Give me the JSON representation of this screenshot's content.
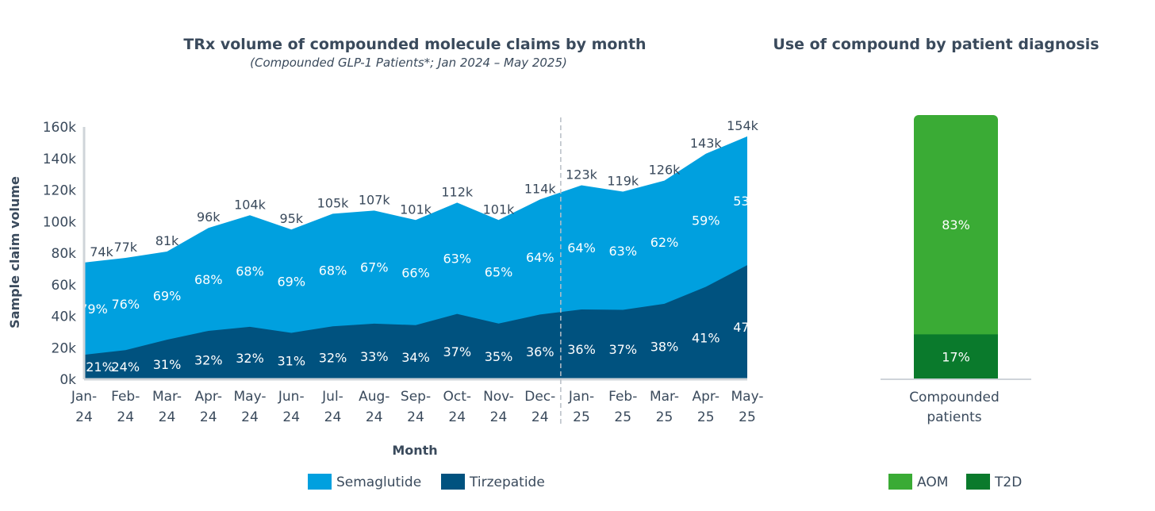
{
  "chart_data": [
    {
      "type": "area",
      "stacked": true,
      "title": "TRx volume of compounded molecule claims by month",
      "subtitle": "(Compounded GLP-1 Patients*; Jan 2024 – May 2025)",
      "xlabel": "Month",
      "ylabel": "Sample claim volume",
      "ylim": [
        0,
        160
      ],
      "yticks": [
        "0k",
        "20k",
        "40k",
        "60k",
        "80k",
        "100k",
        "120k",
        "140k",
        "160k"
      ],
      "categories": [
        [
          "Jan-",
          "24"
        ],
        [
          "Feb-",
          "24"
        ],
        [
          "Mar-",
          "24"
        ],
        [
          "Apr-",
          "24"
        ],
        [
          "May-",
          "24"
        ],
        [
          "Jun-",
          "24"
        ],
        [
          "Jul-",
          "24"
        ],
        [
          "Aug-",
          "24"
        ],
        [
          "Sep-",
          "24"
        ],
        [
          "Oct-",
          "24"
        ],
        [
          "Nov-",
          "24"
        ],
        [
          "Dec-",
          "24"
        ],
        [
          "Jan-",
          "25"
        ],
        [
          "Feb-",
          "25"
        ],
        [
          "Mar-",
          "25"
        ],
        [
          "Apr-",
          "25"
        ],
        [
          "May-",
          "25"
        ]
      ],
      "totals_k": [
        74,
        77,
        81,
        96,
        104,
        95,
        105,
        107,
        101,
        112,
        101,
        114,
        123,
        119,
        126,
        143,
        154
      ],
      "total_labels": [
        "74k",
        "77k",
        "81k",
        "96k",
        "104k",
        "95k",
        "105k",
        "107k",
        "101k",
        "112k",
        "101k",
        "114k",
        "123k",
        "119k",
        "126k",
        "143k",
        "154k"
      ],
      "series": [
        {
          "name": "Tirzepatide",
          "color": "#00527f",
          "share_pct": [
            21,
            24,
            31,
            32,
            32,
            31,
            32,
            33,
            34,
            37,
            35,
            36,
            36,
            37,
            38,
            41,
            47
          ]
        },
        {
          "name": "Semaglutide",
          "color": "#00a0df",
          "share_pct": [
            79,
            76,
            69,
            68,
            68,
            69,
            68,
            67,
            66,
            63,
            65,
            64,
            64,
            63,
            62,
            59,
            53
          ]
        }
      ],
      "divider_after": "Dec-24",
      "legend": "bottom"
    },
    {
      "type": "bar",
      "stacked": true,
      "title": "Use of compound by patient diagnosis",
      "categories": [
        [
          "Compounded",
          "patients"
        ]
      ],
      "series": [
        {
          "name": "T2D",
          "color": "#0a7a2c",
          "values": [
            17
          ],
          "label": "17%"
        },
        {
          "name": "AOM",
          "color": "#3aab35",
          "values": [
            83
          ],
          "label": "83%"
        }
      ],
      "legend": "bottom"
    }
  ]
}
